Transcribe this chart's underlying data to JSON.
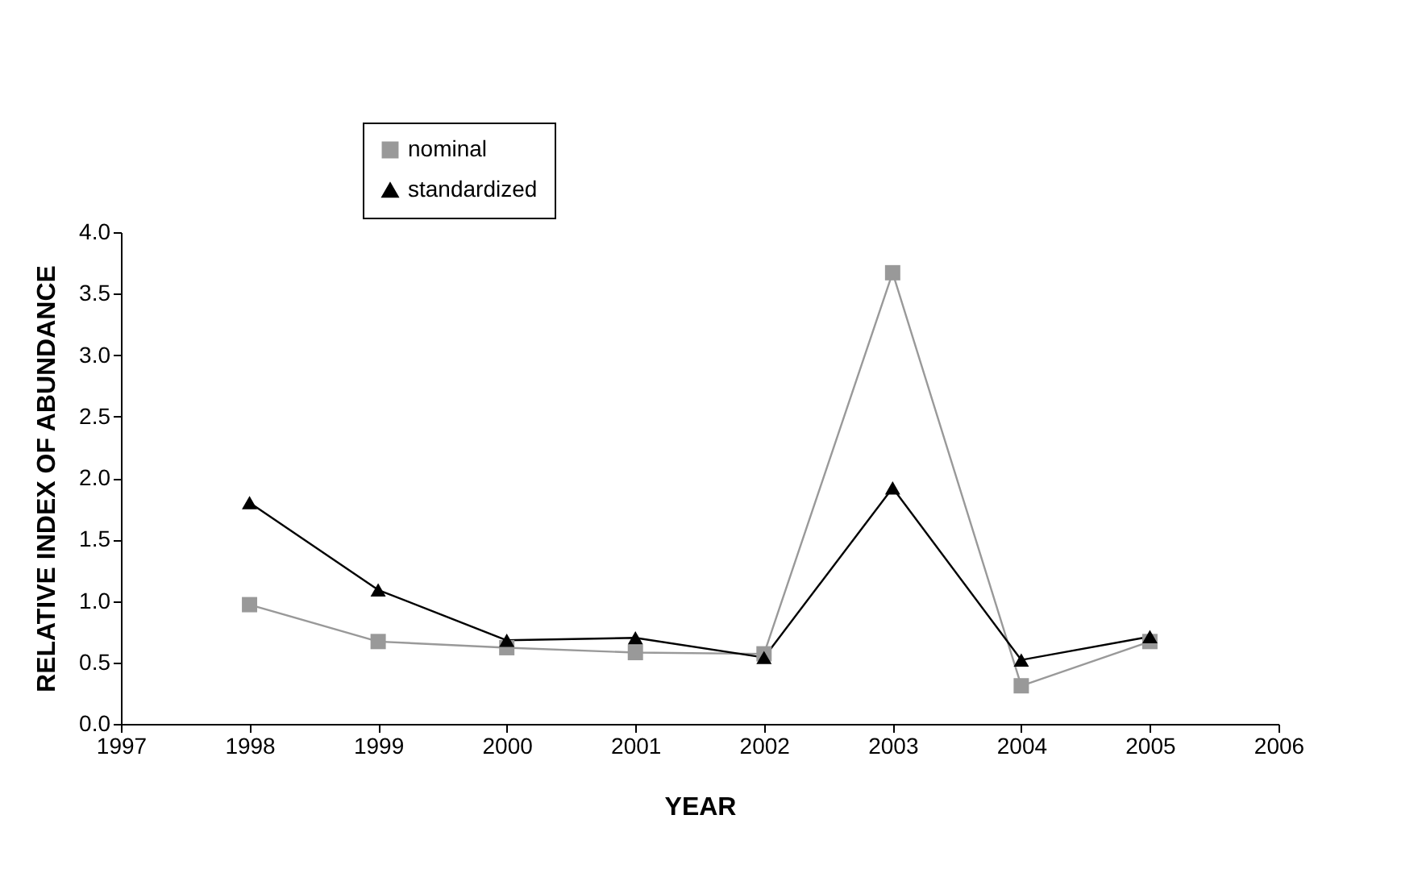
{
  "chart_data": {
    "type": "line",
    "xlabel": "YEAR",
    "ylabel": "RELATIVE INDEX OF ABUNDANCE",
    "x": [
      1998,
      1999,
      2000,
      2001,
      2002,
      2003,
      2004,
      2005
    ],
    "series": [
      {
        "name": "nominal",
        "color": "#999999",
        "marker": "square",
        "values": [
          0.97,
          0.67,
          0.62,
          0.58,
          0.57,
          3.67,
          0.31,
          0.67
        ]
      },
      {
        "name": "standardized",
        "color": "#000000",
        "marker": "triangle",
        "values": [
          1.8,
          1.09,
          0.68,
          0.7,
          0.54,
          1.92,
          0.52,
          0.71
        ]
      }
    ],
    "xlim": [
      1997,
      2006
    ],
    "xticks": [
      1997,
      1998,
      1999,
      2000,
      2001,
      2002,
      2003,
      2004,
      2005,
      2006
    ],
    "ylim": [
      0,
      4
    ],
    "yticks": [
      {
        "value": 0,
        "label": "0.0"
      },
      {
        "value": 0.5,
        "label": "0.5"
      },
      {
        "value": 1,
        "label": "1.0"
      },
      {
        "value": 1.5,
        "label": "1.5"
      },
      {
        "value": 2,
        "label": "2.0"
      },
      {
        "value": 2.5,
        "label": "2.5"
      },
      {
        "value": 3,
        "label": "3.0"
      },
      {
        "value": 3.5,
        "label": "3.5"
      },
      {
        "value": 4,
        "label": "4.0"
      }
    ],
    "grid": false,
    "legend": "top left",
    "line_style": "solid"
  }
}
